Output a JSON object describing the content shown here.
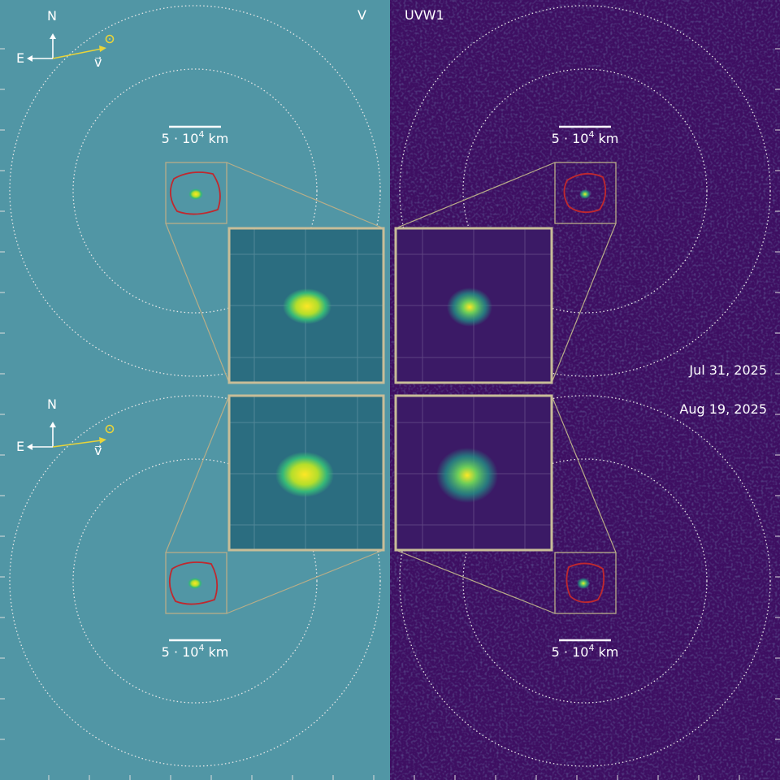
{
  "filters": {
    "left": "V",
    "right": "UVW1"
  },
  "compass": [
    {
      "north": "N",
      "east": "E",
      "velocity": "v⃗"
    },
    {
      "north": "N",
      "east": "E",
      "velocity": "v⃗"
    }
  ],
  "scale_bars": [
    {
      "text": "5 · 10",
      "exponent": "4",
      "unit": "km"
    },
    {
      "text": "5 · 10",
      "exponent": "4",
      "unit": "km"
    },
    {
      "text": "5 · 10",
      "exponent": "4",
      "unit": "km"
    },
    {
      "text": "5 · 10",
      "exponent": "4",
      "unit": "km"
    }
  ],
  "dates": [
    "Jul 31, 2025",
    "Aug 19, 2025"
  ]
}
